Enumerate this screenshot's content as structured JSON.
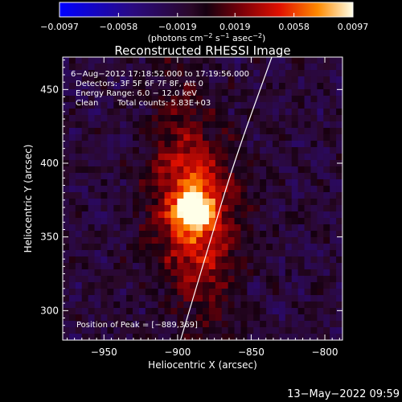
{
  "chart_data": {
    "type": "heatmap",
    "title": "Reconstructed RHESSI Image",
    "xlabel": "Heliocentric X (arcsec)",
    "ylabel": "Heliocentric Y (arcsec)",
    "xlim": [
      -978,
      -788
    ],
    "ylim": [
      280,
      472
    ],
    "x_ticks": [
      -950,
      -900,
      -850,
      -800
    ],
    "y_ticks": [
      300,
      350,
      400,
      450
    ],
    "x_tick_labels": [
      "−950",
      "−900",
      "−850",
      "−800"
    ],
    "y_tick_labels": [
      "300",
      "350",
      "400",
      "450"
    ],
    "colorbar": {
      "min": -0.0097,
      "max": 0.0097,
      "ticks": [
        -0.0097,
        -0.0058,
        -0.0019,
        0.0019,
        0.0058,
        0.0097
      ],
      "tick_labels": [
        "−0.0097",
        "−0.0058",
        "−0.0019",
        "0.0019",
        "0.0058",
        "0.0097"
      ],
      "unit_label": "(photons cm",
      "unit_exp1": "−2",
      "unit_mid": " s",
      "unit_exp2": "−1",
      "unit_mid2": " asec",
      "unit_exp3": "−2",
      "unit_end": ")"
    },
    "annotations": {
      "time_range": "6−Aug−2012 17:18:52.000 to 17:19:56.000",
      "detectors": "Detectors: 3F 5F 6F 7F 8F, Att 0",
      "energy": "Energy Range: 6.0 − 12.0 keV",
      "clean": "Clean",
      "total_counts": "Total counts: 5.83E+03",
      "peak": "Position of Peak = [−889,369]"
    },
    "peak": {
      "x": -889,
      "y": 369
    },
    "limb_curve": [
      [
        -898,
        280
      ],
      [
        -880,
        340
      ],
      [
        -862,
        400
      ],
      [
        -836,
        472
      ]
    ],
    "footer_date": "13−May−2022 09:59"
  }
}
